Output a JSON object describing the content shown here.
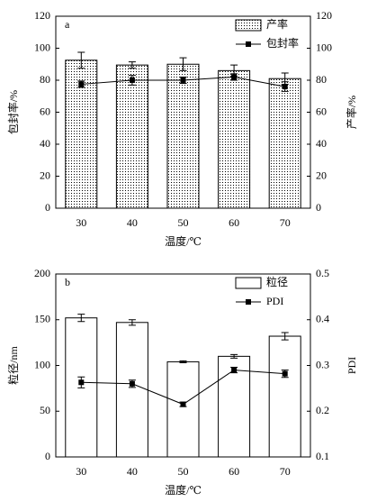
{
  "chart_data": [
    {
      "type": "bar",
      "label": "a",
      "xlabel": "温度/℃",
      "ylabel": "包封率/%",
      "y2label": "产率/%",
      "categories": [
        "30",
        "40",
        "50",
        "60",
        "70"
      ],
      "ylim": [
        0,
        120
      ],
      "yticks": [
        0,
        20,
        40,
        60,
        80,
        100,
        120
      ],
      "y2lim": [
        0,
        120
      ],
      "y2ticks": [
        0,
        20,
        40,
        60,
        80,
        100,
        120
      ],
      "series": [
        {
          "name": "产率",
          "type": "bar",
          "axis": "y2",
          "color": "#000000",
          "pattern": "dots",
          "values": [
            92.5,
            89.5,
            90,
            86,
            81
          ],
          "errors": [
            5,
            2,
            4,
            3.5,
            3.5
          ]
        },
        {
          "name": "包封率",
          "type": "line",
          "axis": "y",
          "color": "#000000",
          "values": [
            77.5,
            80,
            80,
            82,
            76
          ],
          "errors": [
            2,
            3,
            2,
            2,
            3
          ]
        }
      ]
    },
    {
      "type": "bar",
      "label": "b",
      "xlabel": "温度/℃",
      "ylabel": "粒径/nm",
      "y2label": "PDI",
      "categories": [
        "30",
        "40",
        "50",
        "60",
        "70"
      ],
      "ylim": [
        0,
        200
      ],
      "yticks": [
        0,
        50,
        100,
        150,
        200
      ],
      "y2lim": [
        0.1,
        0.5
      ],
      "y2ticks": [
        0.1,
        0.2,
        0.3,
        0.4,
        0.5
      ],
      "series": [
        {
          "name": "粒径",
          "type": "bar",
          "axis": "y",
          "color": "#000000",
          "values": [
            152,
            147,
            104,
            110,
            132
          ],
          "errors": [
            4,
            3,
            1,
            2,
            4
          ]
        },
        {
          "name": "PDI",
          "type": "line",
          "axis": "y2",
          "color": "#000000",
          "values": [
            0.263,
            0.26,
            0.215,
            0.29,
            0.282
          ],
          "errors": [
            0.012,
            0.008,
            0.005,
            0.006,
            0.008
          ]
        }
      ]
    }
  ]
}
